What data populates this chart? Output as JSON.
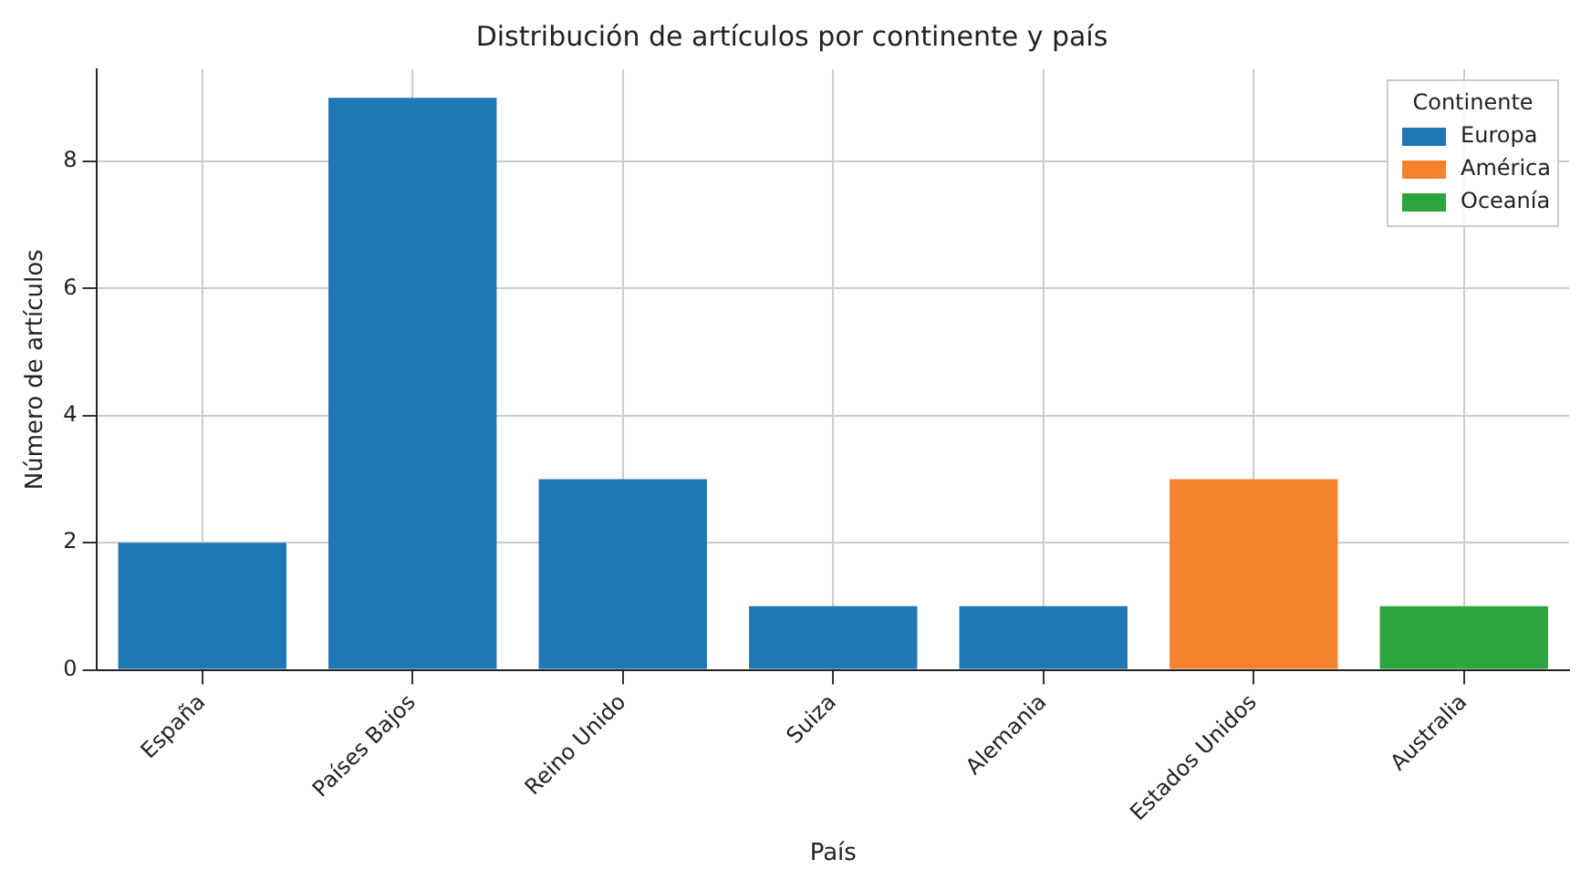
{
  "chart_data": {
    "type": "bar",
    "title": "Distribución de artículos por continente y país",
    "xlabel": "País",
    "ylabel": "Número de artículos",
    "legend_title": "Continente",
    "categories": [
      "España",
      "Países Bajos",
      "Reino Unido",
      "Suiza",
      "Alemania",
      "Estados Unidos",
      "Australia"
    ],
    "series": [
      {
        "name": "Europa",
        "color": "#1f77b4",
        "values": [
          2,
          9,
          3,
          1,
          1,
          null,
          null
        ]
      },
      {
        "name": "América",
        "color": "#f5822f",
        "values": [
          null,
          null,
          null,
          null,
          null,
          3,
          null
        ]
      },
      {
        "name": "Oceanía",
        "color": "#2ca53e",
        "values": [
          null,
          null,
          null,
          null,
          null,
          null,
          1
        ]
      }
    ],
    "ylim": [
      0,
      9.45
    ],
    "yticks": [
      0,
      2,
      4,
      6,
      8
    ],
    "grid": true,
    "legend": "top right"
  }
}
